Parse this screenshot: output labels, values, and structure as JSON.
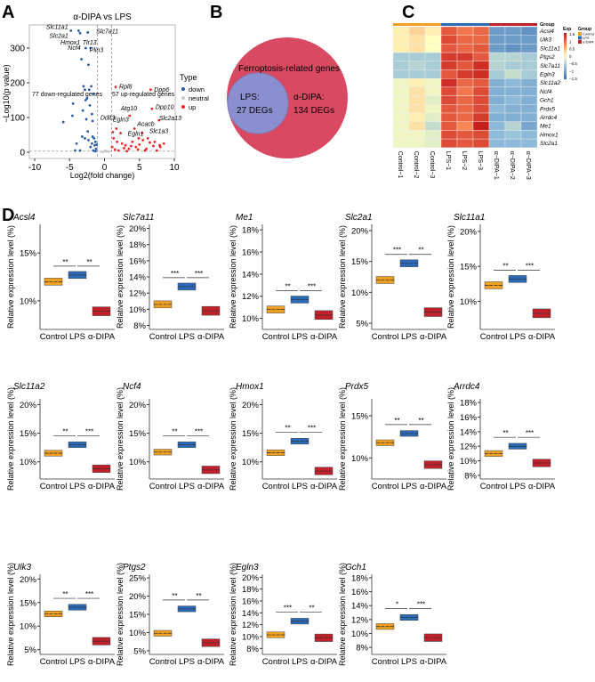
{
  "panel_letters": {
    "a": "A",
    "b": "B",
    "c": "C",
    "d": "D"
  },
  "colors": {
    "control": "#f0a020",
    "lps": "#2a6ab8",
    "dipa": "#c0202a",
    "down": "#2a5aa8",
    "neutral": "#c8c8c8",
    "up": "#e8272a",
    "venn_outer": "#d94a62",
    "venn_inner": "#8c8fcf"
  },
  "chart_data": [
    {
      "type": "scatter",
      "title": "α-DIPA vs LPS",
      "xlabel": "Log2(fold change)",
      "ylabel": "−Log10(p value)",
      "xlim": [
        -10,
        10
      ],
      "ylim": [
        0,
        360
      ],
      "xticks": [
        "-10",
        "-5",
        "0",
        "5",
        "10"
      ],
      "yticks": [
        "0",
        "100",
        "200",
        "300"
      ],
      "annotations": {
        "down_text": "77 down-regulated genes",
        "up_text": "57 up-regulated genes"
      },
      "legend": {
        "title": "Type",
        "items": [
          "down",
          "neutral",
          "up"
        ],
        "placement": "right"
      },
      "down_points": [
        [
          -5.9,
          87
        ],
        [
          -4.6,
          105
        ],
        [
          -4.5,
          140
        ],
        [
          -4,
          25
        ],
        [
          -4.2,
          5
        ],
        [
          -3.3,
          268
        ],
        [
          -3,
          190
        ],
        [
          -2.8,
          180
        ],
        [
          -2.7,
          150
        ],
        [
          -2.5,
          155
        ],
        [
          -2.3,
          252
        ],
        [
          -2.2,
          180
        ],
        [
          -2.1,
          135
        ],
        [
          -2,
          300
        ],
        [
          -1.9,
          190
        ],
        [
          -1.8,
          110
        ],
        [
          -1.7,
          90
        ],
        [
          -1.6,
          168
        ],
        [
          -2.6,
          95
        ],
        [
          -3.1,
          120
        ],
        [
          -3.5,
          5
        ],
        [
          -2.4,
          60
        ],
        [
          -1.5,
          40
        ],
        [
          -1.4,
          20
        ],
        [
          -1.3,
          30
        ],
        [
          -1.8,
          25
        ],
        [
          -2,
          15
        ],
        [
          -1.2,
          10
        ],
        [
          -1.6,
          5
        ],
        [
          -2.3,
          35
        ],
        [
          -1.1,
          22
        ],
        [
          -1.7,
          45
        ],
        [
          -2.8,
          40
        ],
        [
          -3.2,
          45
        ],
        [
          -1.3,
          3
        ],
        [
          -4.8,
          350
        ],
        [
          -3.7,
          350
        ],
        [
          -3.5,
          343
        ],
        [
          -2.4,
          345
        ],
        [
          -2.7,
          300
        ]
      ],
      "neutral_points": [
        [
          -0.5,
          2
        ],
        [
          0.3,
          3
        ],
        [
          0.6,
          2
        ],
        [
          -0.2,
          1
        ],
        [
          0.1,
          4
        ]
      ],
      "up_points": [
        [
          1.6,
          188
        ],
        [
          6.6,
          180
        ],
        [
          6.8,
          125
        ],
        [
          7.8,
          92
        ],
        [
          3.6,
          105
        ],
        [
          4.3,
          68
        ],
        [
          5.4,
          55
        ],
        [
          1.2,
          58
        ],
        [
          1.7,
          68
        ],
        [
          2.3,
          55
        ],
        [
          1.3,
          40
        ],
        [
          1.8,
          30
        ],
        [
          2.5,
          25
        ],
        [
          3,
          20
        ],
        [
          3.5,
          10
        ],
        [
          4,
          30
        ],
        [
          4.5,
          15
        ],
        [
          5,
          22
        ],
        [
          5.5,
          35
        ],
        [
          6,
          10
        ],
        [
          6.5,
          28
        ],
        [
          7,
          18
        ],
        [
          7.5,
          5
        ],
        [
          8,
          15
        ],
        [
          8.5,
          25
        ],
        [
          2,
          5
        ],
        [
          3.2,
          3
        ],
        [
          4.8,
          8
        ],
        [
          5.8,
          5
        ],
        [
          7.2,
          30
        ],
        [
          1.1,
          15
        ],
        [
          1.5,
          8
        ],
        [
          2.8,
          12
        ],
        [
          3.8,
          18
        ],
        [
          6.2,
          40
        ],
        [
          7.9,
          20
        ],
        [
          4.9,
          40
        ]
      ],
      "labels": [
        {
          "text": "Slc11a1",
          "x": -4.8,
          "y": 350
        },
        {
          "text": "Slc2a1",
          "x": -4.6,
          "y": 340
        },
        {
          "text": "Hmox1",
          "x": -3.5,
          "y": 343
        },
        {
          "text": "Tlr13",
          "x": -2.9,
          "y": 343
        },
        {
          "text": "Plin3",
          "x": -2.4,
          "y": 345
        },
        {
          "text": "Slc7a11",
          "x": -2.2,
          "y": 348
        },
        {
          "text": "Ncf4",
          "x": -2.7,
          "y": 300
        },
        {
          "text": "Rpl8",
          "x": 1.6,
          "y": 188
        },
        {
          "text": "Dpp6",
          "x": 6.6,
          "y": 180
        },
        {
          "text": "Dpp10",
          "x": 6.8,
          "y": 125
        },
        {
          "text": "Atg10",
          "x": 3.6,
          "y": 105
        },
        {
          "text": "Slc2a13",
          "x": 7.8,
          "y": 92
        },
        {
          "text": "Ddit3",
          "x": 1.2,
          "y": 58
        },
        {
          "text": "Egln3",
          "x": 1.7,
          "y": 68
        },
        {
          "text": "Acacb",
          "x": 4.3,
          "y": 68
        },
        {
          "text": "Egln1",
          "x": 2.3,
          "y": 55
        },
        {
          "text": "Slc1a3",
          "x": 5.4,
          "y": 55
        }
      ]
    },
    {
      "type": "venn",
      "title": "Ferroptosis-related genes",
      "sets": [
        {
          "name": "LPS:",
          "count_label": "27 DEGs",
          "count": 27
        },
        {
          "name": "α-DIPA:",
          "count_label": "134 DEGs",
          "count": 134
        }
      ]
    },
    {
      "type": "heatmap",
      "rows": [
        "Acsl4",
        "Ulk3",
        "Slc11a1",
        "Ptgs2",
        "Slc7a11",
        "Egln3",
        "Slc11a2",
        "Ncf4",
        "Gch1",
        "Prdx5",
        "Arrdc4",
        "Me1",
        "Hmox1",
        "Slc2a1"
      ],
      "columns": [
        "Control−1",
        "Control−2",
        "Control−3",
        "LPS−1",
        "LPS−2",
        "LPS−3",
        "α−DIPA−1",
        "α−DIPA−2",
        "α−DIPA−3"
      ],
      "column_groups": [
        "Control",
        "Control",
        "Control",
        "LPS",
        "LPS",
        "LPS",
        "α-DIPA",
        "α-DIPA",
        "α-DIPA"
      ],
      "group_label": "Group",
      "legend": {
        "exp_title": "Exp",
        "exp_ticks": [
          "1.5",
          "1",
          "0.5",
          "0",
          "−0.5",
          "−1",
          "−1.5"
        ],
        "group_title": "Group",
        "groups": [
          "Control",
          "LPS",
          "α-DIPA"
        ]
      },
      "values": [
        [
          0.1,
          0.3,
          0.1,
          1.1,
          0.9,
          1.0,
          -1.1,
          -1.1,
          -1.2
        ],
        [
          0.1,
          0.2,
          0.0,
          1.2,
          1.0,
          1.0,
          -1.1,
          -1.1,
          -1.1
        ],
        [
          0.1,
          0.2,
          0.0,
          1.1,
          1.0,
          1.1,
          -1.1,
          -1.2,
          -1.1
        ],
        [
          -0.6,
          -0.6,
          -0.6,
          1.3,
          1.3,
          1.1,
          -0.5,
          -0.5,
          -0.6
        ],
        [
          -0.6,
          -0.5,
          -0.6,
          1.3,
          1.1,
          1.4,
          -0.5,
          -0.6,
          -0.6
        ],
        [
          -0.6,
          -0.6,
          -0.6,
          1.1,
          1.3,
          1.4,
          -0.6,
          -0.4,
          -0.6
        ],
        [
          -0.1,
          0.1,
          -0.1,
          1.4,
          1.0,
          1.1,
          -0.9,
          -0.8,
          -0.9
        ],
        [
          -0.1,
          0.2,
          -0.1,
          1.2,
          0.9,
          1.2,
          -0.9,
          -0.9,
          -0.9
        ],
        [
          -0.1,
          0.2,
          -0.2,
          1.2,
          1.0,
          1.2,
          -0.9,
          -0.8,
          -0.9
        ],
        [
          -0.1,
          0.2,
          -0.1,
          1.1,
          1.0,
          1.2,
          -0.8,
          -0.9,
          -0.9
        ],
        [
          -0.1,
          0.1,
          -0.2,
          1.1,
          1.0,
          1.3,
          -0.9,
          -0.9,
          -0.9
        ],
        [
          -0.1,
          0.2,
          -0.4,
          1.1,
          0.8,
          1.5,
          -0.8,
          -0.5,
          -1.0
        ],
        [
          -0.1,
          -0.1,
          -0.2,
          1.2,
          1.1,
          1.2,
          -0.8,
          -0.7,
          -0.8
        ],
        [
          -0.1,
          -0.1,
          -0.2,
          1.2,
          1.1,
          1.2,
          -0.8,
          -0.8,
          -0.8
        ]
      ]
    },
    {
      "type": "box",
      "ylabel": "Relative expression level (%)",
      "categories": [
        "Control",
        "LPS",
        "α-DIPA"
      ],
      "panels": [
        {
          "gene": "Acsl4",
          "ylim": [
            7,
            18
          ],
          "yticks": [
            10,
            15
          ],
          "values": [
            12,
            12.7,
            8.9
          ],
          "sig": [
            "**",
            "**"
          ]
        },
        {
          "gene": "Slc7a11",
          "ylim": [
            7.5,
            20.5
          ],
          "yticks": [
            8,
            10,
            12,
            14,
            16,
            18,
            20
          ],
          "values": [
            10.6,
            12.8,
            9.8
          ],
          "sig": [
            "***",
            "***"
          ]
        },
        {
          "gene": "Me1",
          "ylim": [
            9,
            18.5
          ],
          "yticks": [
            10,
            12,
            14,
            16,
            18
          ],
          "values": [
            10.8,
            11.7,
            10.3
          ],
          "sig": [
            "**",
            "***"
          ]
        },
        {
          "gene": "Slc2a1",
          "ylim": [
            4,
            21
          ],
          "yticks": [
            5,
            10,
            15,
            20
          ],
          "values": [
            12,
            14.7,
            6.8
          ],
          "sig": [
            "***",
            "**"
          ]
        },
        {
          "gene": "Slc11a1",
          "ylim": [
            6,
            21
          ],
          "yticks": [
            10,
            15,
            20
          ],
          "values": [
            12.3,
            13.2,
            8.3
          ],
          "sig": [
            "**",
            "***"
          ]
        },
        {
          "gene": "Slc11a2",
          "ylim": [
            7,
            21
          ],
          "yticks": [
            10,
            15,
            20
          ],
          "values": [
            11.5,
            13,
            8.8
          ],
          "sig": [
            "**",
            "***"
          ]
        },
        {
          "gene": "Ncf4",
          "ylim": [
            7,
            21
          ],
          "yticks": [
            10,
            15,
            20
          ],
          "values": [
            11.7,
            13,
            8.6
          ],
          "sig": [
            "**",
            "***"
          ]
        },
        {
          "gene": "Hmox1",
          "ylim": [
            7,
            21
          ],
          "yticks": [
            10,
            15,
            20
          ],
          "values": [
            11.6,
            13.6,
            8.4
          ],
          "sig": [
            "**",
            "***"
          ]
        },
        {
          "gene": "Prdx5",
          "ylim": [
            7.5,
            17
          ],
          "yticks": [
            10,
            15
          ],
          "values": [
            11.8,
            12.9,
            9.2
          ],
          "sig": [
            "**",
            "**"
          ]
        },
        {
          "gene": "Arrdc4",
          "ylim": [
            7.5,
            18.5
          ],
          "yticks": [
            8,
            10,
            12,
            14,
            16,
            18
          ],
          "values": [
            11,
            12,
            9.7
          ],
          "sig": [
            "**",
            "***"
          ]
        },
        {
          "gene": "Ulk3",
          "ylim": [
            4,
            21
          ],
          "yticks": [
            5,
            10,
            15,
            20
          ],
          "values": [
            12.6,
            14,
            6.8
          ],
          "sig": [
            "**",
            "***"
          ]
        },
        {
          "gene": "Ptgs2",
          "ylim": [
            4,
            26
          ],
          "yticks": [
            5,
            10,
            15,
            20,
            25
          ],
          "values": [
            9.8,
            16.5,
            7.2
          ],
          "sig": [
            "**",
            "**"
          ]
        },
        {
          "gene": "Egln3",
          "ylim": [
            7,
            20.5
          ],
          "yticks": [
            8,
            10,
            12,
            14,
            16,
            18,
            20
          ],
          "values": [
            10.3,
            12.6,
            9.8
          ],
          "sig": [
            "***",
            "**"
          ]
        },
        {
          "gene": "Gch1",
          "ylim": [
            7,
            18.5
          ],
          "yticks": [
            8,
            10,
            12,
            14,
            16,
            18
          ],
          "values": [
            11,
            12.3,
            9.4
          ],
          "sig": [
            "*",
            "***"
          ]
        }
      ]
    }
  ]
}
